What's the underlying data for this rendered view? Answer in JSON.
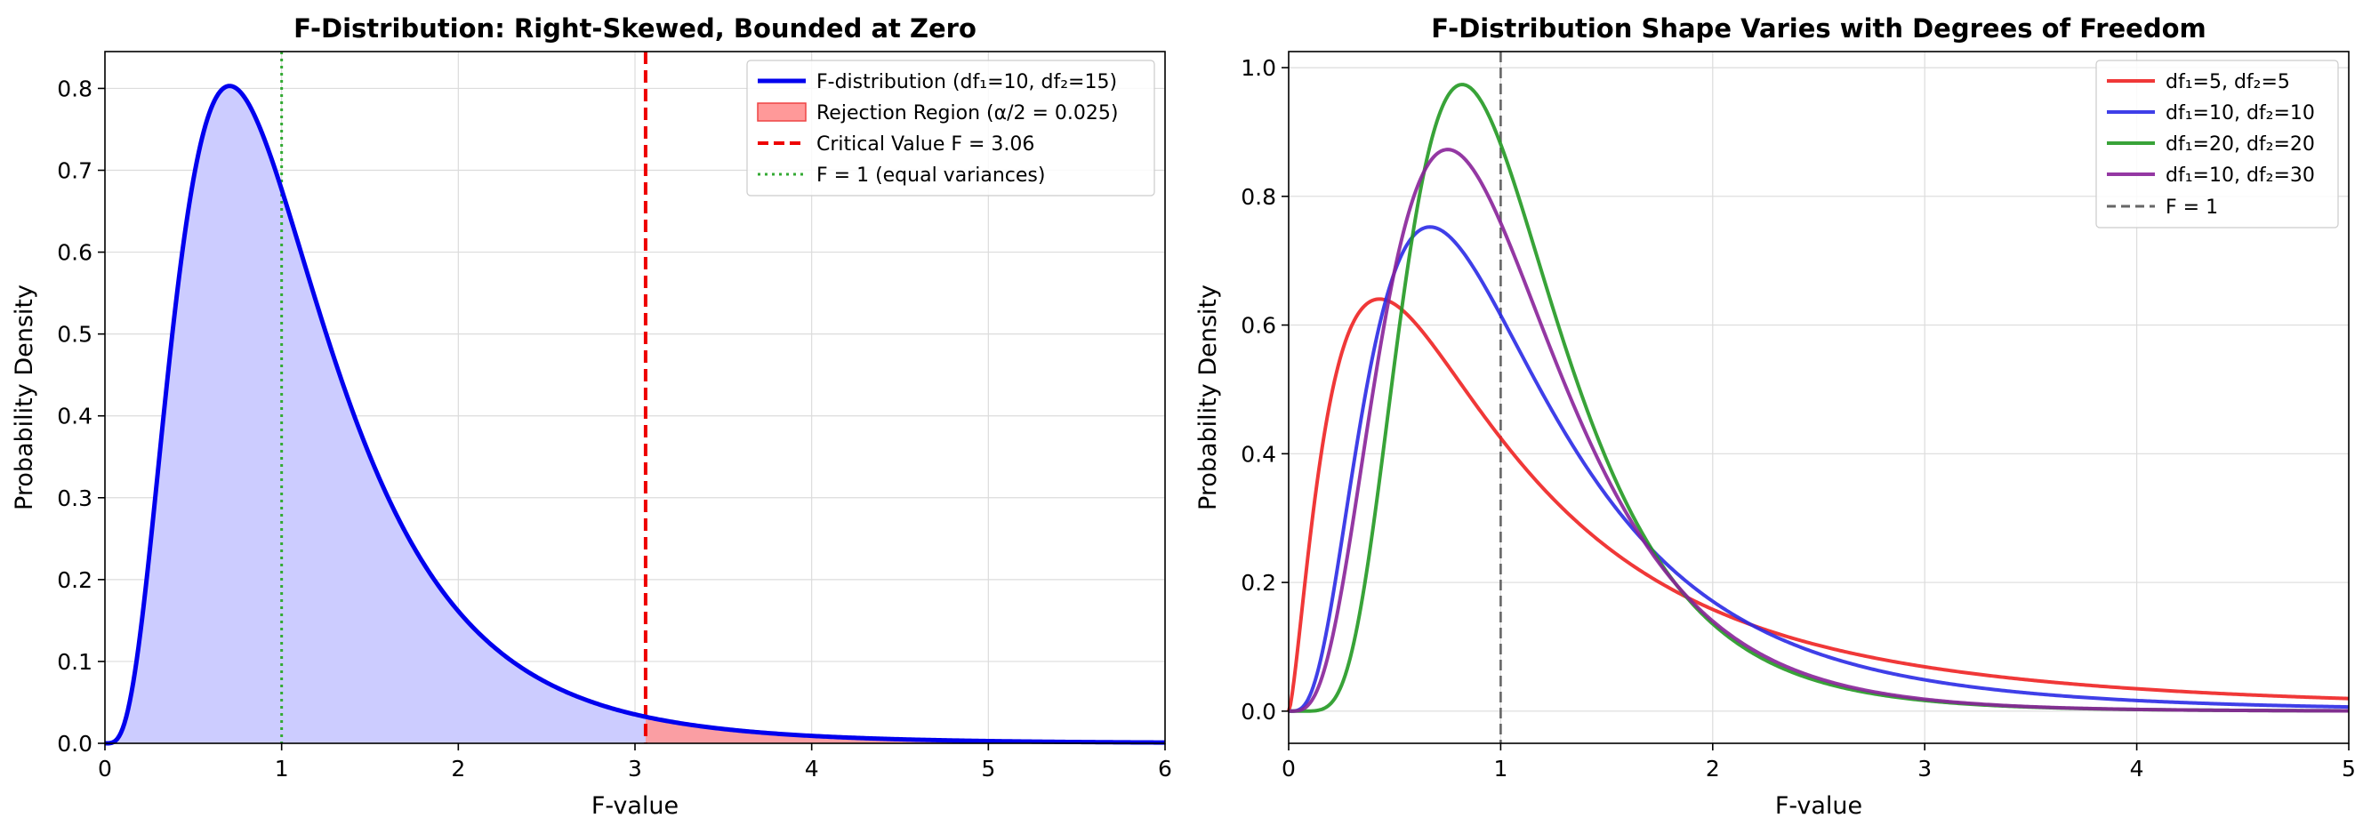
{
  "chart_data": [
    {
      "type": "line",
      "title": "F-Distribution: Right-Skewed, Bounded at Zero",
      "xlabel": "F-value",
      "ylabel": "Probability Density",
      "xlim": [
        0,
        6
      ],
      "ylim": [
        0,
        0.845
      ],
      "xticks": [
        0,
        1,
        2,
        3,
        4,
        5,
        6
      ],
      "xtick_labels": [
        "0",
        "1",
        "2",
        "3",
        "4",
        "5",
        "6"
      ],
      "yticks": [
        0.0,
        0.1,
        0.2,
        0.3,
        0.4,
        0.5,
        0.6,
        0.7,
        0.8
      ],
      "ytick_labels": [
        "0.0",
        "0.1",
        "0.2",
        "0.3",
        "0.4",
        "0.5",
        "0.6",
        "0.7",
        "0.8"
      ],
      "grid": true,
      "legend_position": "top-right",
      "series": [
        {
          "name": "F-distribution (df₁=10, df₂=15)",
          "kind": "pdf",
          "df1": 10,
          "df2": 15,
          "x_range": [
            0,
            6
          ],
          "color": "#0000ee",
          "fill": "#ccccff"
        }
      ],
      "rejection_region": {
        "label": "Rejection Region (α/2 = 0.025)",
        "from": 3.06,
        "to": 6,
        "color": "#ff9999"
      },
      "vlines": [
        {
          "label": "Critical Value F = 3.06",
          "x": 3.06,
          "color": "#ee0000",
          "style": "dashed"
        },
        {
          "label": "F = 1 (equal variances)",
          "x": 1,
          "color": "#33aa33",
          "style": "dotted"
        }
      ]
    },
    {
      "type": "line",
      "title": "F-Distribution Shape Varies with Degrees of Freedom",
      "xlabel": "F-value",
      "ylabel": "Probability Density",
      "xlim": [
        0,
        5
      ],
      "ylim": [
        -0.05,
        1.025
      ],
      "xticks": [
        0,
        1,
        2,
        3,
        4,
        5
      ],
      "xtick_labels": [
        "0",
        "1",
        "2",
        "3",
        "4",
        "5"
      ],
      "yticks": [
        0.0,
        0.2,
        0.4,
        0.6,
        0.8,
        1.0
      ],
      "ytick_labels": [
        "0.0",
        "0.2",
        "0.4",
        "0.6",
        "0.8",
        "1.0"
      ],
      "grid": true,
      "legend_position": "top-right",
      "series": [
        {
          "name": "df₁=5, df₂=5",
          "kind": "pdf",
          "df1": 5,
          "df2": 5,
          "x_range": [
            0,
            5
          ],
          "color": "#ee2222"
        },
        {
          "name": "df₁=10, df₂=10",
          "kind": "pdf",
          "df1": 10,
          "df2": 10,
          "x_range": [
            0,
            5
          ],
          "color": "#2a2ae6"
        },
        {
          "name": "df₁=20, df₂=20",
          "kind": "pdf",
          "df1": 20,
          "df2": 20,
          "x_range": [
            0,
            5
          ],
          "color": "#229922"
        },
        {
          "name": "df₁=10, df₂=30",
          "kind": "pdf",
          "df1": 10,
          "df2": 30,
          "x_range": [
            0,
            5
          ],
          "color": "#882299"
        }
      ],
      "vlines": [
        {
          "label": "F = 1",
          "x": 1,
          "color": "#666666",
          "style": "dashed"
        }
      ]
    }
  ]
}
